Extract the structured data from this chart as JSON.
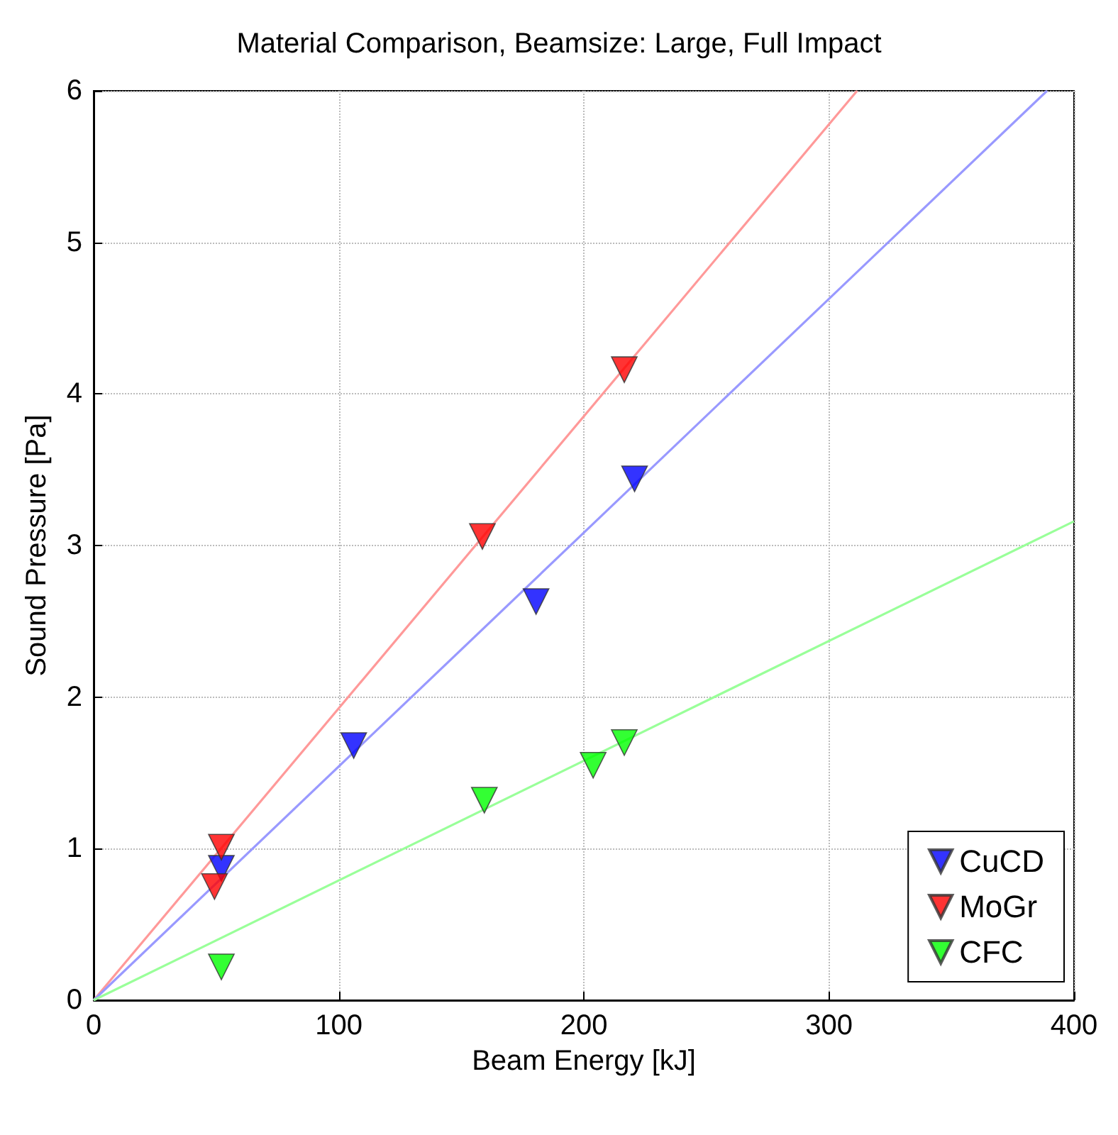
{
  "chart_data": {
    "type": "scatter",
    "title": "Material Comparison, Beamsize: Large, Full Impact",
    "xlabel": "Beam Energy [kJ]",
    "ylabel": "Sound Pressure [Pa]",
    "xlim": [
      0,
      400
    ],
    "ylim": [
      0,
      6
    ],
    "xticks": [
      0,
      100,
      200,
      300,
      400
    ],
    "yticks": [
      0,
      1,
      2,
      3,
      4,
      5,
      6
    ],
    "grid": true,
    "legend": "bottom right",
    "marker": "triangle",
    "series": [
      {
        "name": "CuCD",
        "color": "#0000ff",
        "x": [
          52.1,
          106.1,
          180.5,
          220.7
        ],
        "values": [
          0.87,
          1.68,
          2.63,
          3.44
        ]
      },
      {
        "name": "MoGr",
        "color": "#ff0000",
        "x": [
          49.3,
          52.1,
          158.6,
          216.5
        ],
        "values": [
          0.75,
          1.01,
          3.06,
          4.16
        ]
      },
      {
        "name": "CFC",
        "color": "#00ff00",
        "x": [
          52.1,
          159.4,
          203.8,
          216.5
        ],
        "values": [
          0.22,
          1.32,
          1.55,
          1.7
        ]
      },
      {
        "type": "line",
        "marker": "none",
        "color": "#ff9999",
        "x": [
          0,
          311.5
        ],
        "values": [
          0,
          6
        ]
      },
      {
        "type": "line",
        "marker": "none",
        "color": "#9999ff",
        "x": [
          0,
          389
        ],
        "values": [
          0,
          6
        ]
      },
      {
        "type": "line",
        "marker": "none",
        "color": "#99ff99",
        "x": [
          0,
          400
        ],
        "values": [
          0,
          3.16
        ]
      }
    ]
  }
}
